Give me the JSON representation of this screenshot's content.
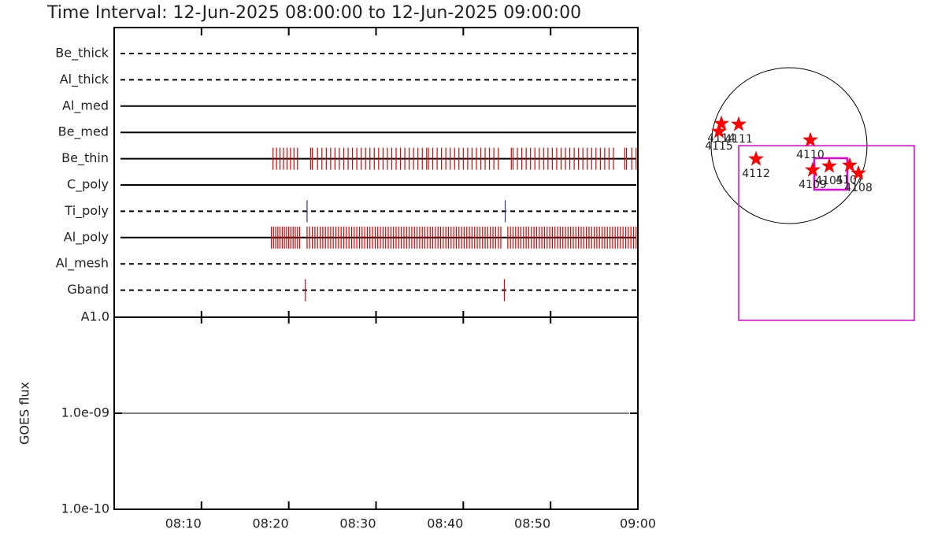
{
  "title": "Time Interval: 12-Jun-2025 08:00:00 to 12-Jun-2025 09:00:00",
  "chart_data": [
    {
      "type": "event",
      "xlim": [
        0,
        60
      ],
      "rows": [
        {
          "name": "Be_thick",
          "style": "dashed",
          "color": "#e00000",
          "events": []
        },
        {
          "name": "Al_thick",
          "style": "dashed",
          "color": "#e00000",
          "events": []
        },
        {
          "name": "Al_med",
          "style": "solid",
          "color": "#e00000",
          "events": []
        },
        {
          "name": "Be_med",
          "style": "solid",
          "color": "#e00000",
          "events": []
        },
        {
          "name": "Be_thin",
          "style": "solid",
          "color": "#e00000",
          "events": [
            18.2,
            18.6,
            19.0,
            19.4,
            19.8,
            20.2,
            20.6,
            21.0,
            22.5,
            22.7,
            23.3,
            23.8,
            24.3,
            24.8,
            25.3,
            25.8,
            26.3,
            26.8,
            27.3,
            27.8,
            28.3,
            28.8,
            29.3,
            29.8,
            30.3,
            30.8,
            31.3,
            31.8,
            32.3,
            32.8,
            33.3,
            33.8,
            34.3,
            34.8,
            35.3,
            35.8,
            36.0,
            36.5,
            37.0,
            37.5,
            38.0,
            38.5,
            39.0,
            39.5,
            40.0,
            40.5,
            41.0,
            41.5,
            42.0,
            42.5,
            43.0,
            43.5,
            44.0,
            45.5,
            45.7,
            46.2,
            46.7,
            47.2,
            47.7,
            48.2,
            48.7,
            49.2,
            49.7,
            50.2,
            50.7,
            51.2,
            51.7,
            52.2,
            52.7,
            53.2,
            53.7,
            54.2,
            54.7,
            55.2,
            55.7,
            56.2,
            56.7,
            57.2,
            58.5,
            58.7,
            59.3,
            59.8
          ]
        },
        {
          "name": "C_poly",
          "style": "solid",
          "color": "#e00000",
          "events": []
        },
        {
          "name": "Ti_poly",
          "style": "dashed",
          "color": "#3030a0",
          "events": [
            22.1,
            44.8
          ]
        },
        {
          "name": "Al_poly",
          "style": "solid",
          "color": "#e00000",
          "events": [
            18.0,
            18.25,
            18.5,
            18.75,
            19.0,
            19.25,
            19.5,
            19.75,
            20.0,
            20.25,
            20.5,
            20.75,
            21.0,
            21.25,
            22.1,
            22.4,
            22.7,
            23.0,
            23.3,
            23.6,
            23.9,
            24.2,
            24.5,
            24.8,
            25.1,
            25.4,
            25.7,
            26.0,
            26.3,
            26.6,
            26.9,
            27.2,
            27.5,
            27.8,
            28.1,
            28.4,
            28.7,
            29.0,
            29.3,
            29.6,
            29.9,
            30.2,
            30.5,
            30.8,
            31.1,
            31.4,
            31.7,
            32.0,
            32.3,
            32.6,
            32.9,
            33.2,
            33.5,
            33.8,
            34.1,
            34.4,
            34.7,
            35.0,
            35.3,
            35.6,
            35.9,
            36.2,
            36.5,
            36.8,
            37.1,
            37.4,
            37.7,
            38.0,
            38.3,
            38.6,
            38.9,
            39.2,
            39.5,
            39.8,
            40.1,
            40.4,
            40.7,
            41.0,
            41.3,
            41.6,
            41.9,
            42.2,
            42.5,
            42.8,
            43.1,
            43.4,
            43.7,
            44.0,
            44.3,
            45.1,
            45.4,
            45.7,
            46.0,
            46.3,
            46.6,
            46.9,
            47.2,
            47.5,
            47.8,
            48.1,
            48.4,
            48.7,
            49.0,
            49.3,
            49.6,
            49.9,
            50.2,
            50.5,
            50.8,
            51.1,
            51.4,
            51.7,
            52.0,
            52.3,
            52.6,
            52.9,
            53.2,
            53.5,
            53.8,
            54.1,
            54.4,
            54.7,
            55.0,
            55.3,
            55.6,
            55.9,
            56.2,
            56.5,
            56.8,
            57.1,
            57.4,
            57.7,
            58.0,
            58.3,
            58.6,
            58.9,
            59.2,
            59.5,
            59.8
          ]
        },
        {
          "name": "Al_mesh",
          "style": "dashed",
          "color": "#e00000",
          "events": []
        },
        {
          "name": "Gband",
          "style": "dashed",
          "color": "#e00000",
          "events": [
            21.9,
            44.7
          ]
        }
      ]
    },
    {
      "type": "line",
      "ylabel": "GOES flux",
      "log": true,
      "xlim": [
        0,
        60
      ],
      "xticks": [
        {
          "value": 10,
          "label": "08:10"
        },
        {
          "value": 20,
          "label": "08:20"
        },
        {
          "value": 30,
          "label": "08:30"
        },
        {
          "value": 40,
          "label": "08:40"
        },
        {
          "value": 50,
          "label": "08:50"
        },
        {
          "value": 60,
          "label": "09:00"
        }
      ],
      "ylim": [
        1e-10,
        1e-08
      ],
      "yticks": [
        {
          "value": 1e-10,
          "label": "1.0e-10"
        },
        {
          "value": 1e-09,
          "label": "1.0e-09"
        },
        {
          "value": 1e-08,
          "label": "A1.0"
        }
      ],
      "x": [
        0,
        59
      ],
      "series": [
        {
          "color": "#000000",
          "values": [
            1e-09,
            1e-09
          ]
        }
      ]
    },
    {
      "type": "map",
      "box_color": "#e000e0",
      "fov": {
        "x": 461,
        "y": -1077,
        "width": 2163,
        "height": 2153
      },
      "target": {
        "x": 514,
        "y": -349,
        "width": 407,
        "height": 388
      },
      "regions": [
        {
          "label": "4114",
          "x": -834,
          "y": 272
        },
        {
          "label": "4115",
          "x": -863,
          "y": 175
        },
        {
          "label": "4111",
          "x": -621,
          "y": 262
        },
        {
          "label": "4112",
          "x": -407,
          "y": -165
        },
        {
          "label": "4110",
          "x": 262,
          "y": 68
        },
        {
          "label": "4109",
          "x": 291,
          "y": -301
        },
        {
          "label": "4105",
          "x": 495,
          "y": -252
        },
        {
          "label": "4107",
          "x": 747,
          "y": -243
        },
        {
          "label": "4108",
          "x": 854,
          "y": -340
        }
      ]
    }
  ]
}
